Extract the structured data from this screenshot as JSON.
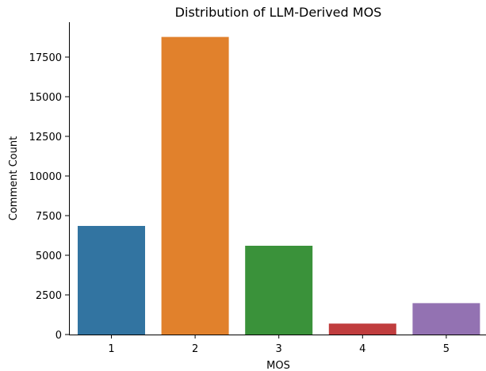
{
  "chart_data": {
    "type": "bar",
    "title": "Distribution of LLM-Derived MOS",
    "xlabel": "MOS",
    "ylabel": "Comment Count",
    "categories": [
      "1",
      "2",
      "3",
      "4",
      "5"
    ],
    "values": [
      6850,
      18770,
      5600,
      690,
      1980
    ],
    "colors": [
      "#3274a1",
      "#e1812c",
      "#3a923a",
      "#c03d3e",
      "#9372b2"
    ],
    "ylim": [
      0,
      19700
    ],
    "yticks": [
      0,
      2500,
      5000,
      7500,
      10000,
      12500,
      15000,
      17500
    ],
    "grid": false,
    "spines": "left-bottom"
  }
}
